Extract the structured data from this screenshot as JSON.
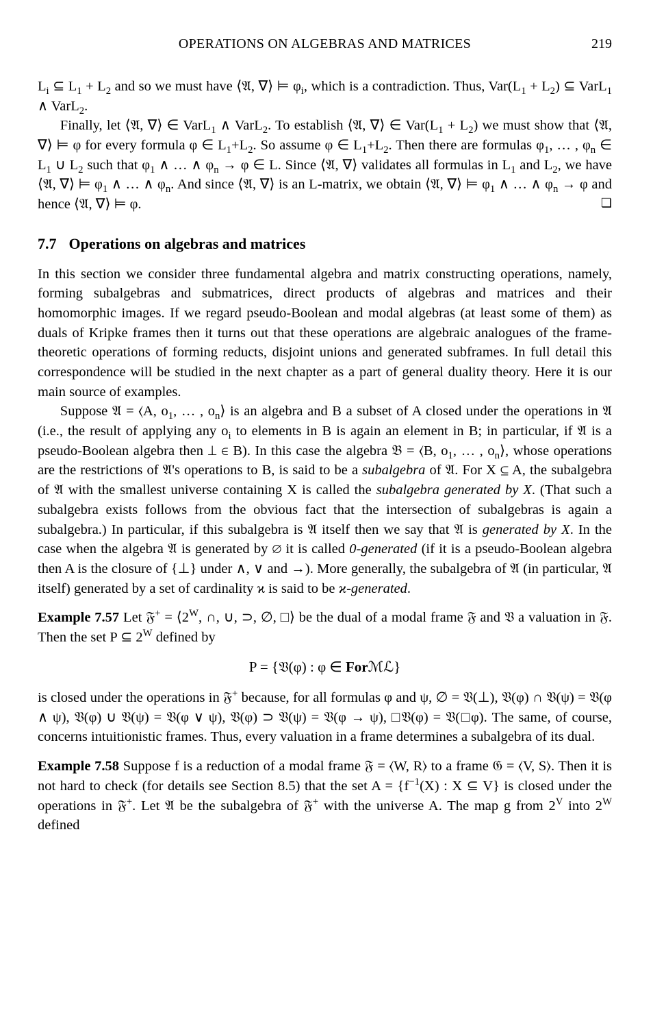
{
  "header": {
    "running_title": "OPERATIONS ON ALGEBRAS AND MATRICES",
    "page_number": "219"
  },
  "para1": "L<sub>i</sub> ⊆ L<sub>1</sub> + L<sub>2</sub> and so we must have ⟨𝔄, ∇⟩ ⊨ φ<sub>i</sub>, which is a contradiction. Thus, Var(L<sub>1</sub> + L<sub>2</sub>) ⊆ VarL<sub>1</sub> ∧ VarL<sub>2</sub>.",
  "para2": "Finally, let ⟨𝔄, ∇⟩ ∈ VarL<sub>1</sub> ∧ VarL<sub>2</sub>. To establish ⟨𝔄, ∇⟩ ∈ Var(L<sub>1</sub> + L<sub>2</sub>) we must show that ⟨𝔄, ∇⟩ ⊨ φ for every formula φ ∈ L<sub>1</sub>+L<sub>2</sub>. So assume φ ∈ L<sub>1</sub>+L<sub>2</sub>. Then there are formulas φ<sub>1</sub>, … , φ<sub>n</sub> ∈ L<sub>1</sub> ∪ L<sub>2</sub> such that φ<sub>1</sub> ∧ … ∧ φ<sub>n</sub> → φ ∈ L. Since ⟨𝔄, ∇⟩ validates all formulas in L<sub>1</sub> and L<sub>2</sub>, we have ⟨𝔄, ∇⟩ ⊨ φ<sub>1</sub> ∧ … ∧ φ<sub>n</sub>. And since ⟨𝔄, ∇⟩ is an L-matrix, we obtain ⟨𝔄, ∇⟩ ⊨ φ<sub>1</sub> ∧ … ∧ φ<sub>n</sub> → φ and hence ⟨𝔄, ∇⟩ ⊨ φ.",
  "qed": "❏",
  "section": {
    "number": "7.7",
    "title": "Operations on algebras and matrices"
  },
  "para3": "In this section we consider three fundamental algebra and matrix constructing operations, namely, forming subalgebras and submatrices, direct products of algebras and matrices and their homomorphic images. If we regard pseudo-Boolean and modal algebras (at least some of them) as duals of Kripke frames then it turns out that these operations are algebraic analogues of the frame-theoretic operations of forming reducts, disjoint unions and generated subframes. In full detail this correspondence will be studied in the next chapter as a part of general duality theory. Here it is our main source of examples.",
  "para4": "Suppose 𝔄 = ⟨A, o<sub>1</sub>, … , o<sub>n</sub>⟩ is an algebra and B a subset of A closed under the operations in 𝔄 (i.e., the result of applying any o<sub>i</sub> to elements in B is again an element in B; in particular, if 𝔄 is a pseudo-Boolean algebra then ⊥ ∈ B). In this case the algebra 𝔅 = ⟨B, o<sub>1</sub>, … , o<sub>n</sub>⟩, whose operations are the restrictions of 𝔄's operations to B, is said to be a <span class=\"it\">subalgebra</span> of 𝔄. For X ⊆ A, the subalgebra of 𝔄 with the smallest universe containing X is called the <span class=\"it\">subalgebra generated by X</span>. (That such a subalgebra exists follows from the obvious fact that the intersection of subalgebras is again a subalgebra.) In particular, if this subalgebra is 𝔄 itself then we say that 𝔄 is <span class=\"it\">generated by X</span>. In the case when the algebra 𝔄 is generated by ∅ it is called <span class=\"it\">0-generated</span> (if it is a pseudo-Boolean algebra then A is the closure of {⊥} under ∧, ∨ and →). More generally, the subalgebra of 𝔄 (in particular, 𝔄 itself) generated by a set of cardinality ϰ is said to be <span class=\"it\">ϰ-generated</span>.",
  "example57_label": "Example 7.57",
  "example57_body": " Let 𝔉<sup>+</sup> = ⟨2<sup>W</sup>, ∩, ∪, ⊃, ∅, □⟩ be the dual of a modal frame 𝔉 and 𝔙 a valuation in 𝔉. Then the set P ⊆ 2<sup>W</sup> defined by",
  "display": "P = {𝔙(φ) :  φ ∈ <span class=\"bf\">For</span>ℳℒ}",
  "para5": "is closed under the operations in 𝔉<sup>+</sup> because, for all formulas φ and ψ, ∅ = 𝔙(⊥), 𝔙(φ) ∩ 𝔙(ψ) = 𝔙(φ ∧ ψ), 𝔙(φ) ∪ 𝔙(ψ) = 𝔙(φ ∨ ψ), 𝔙(φ) ⊃ 𝔙(ψ) = 𝔙(φ → ψ), □𝔙(φ) = 𝔙(□φ). The same, of course, concerns intuitionistic frames. Thus, every valuation in a frame determines a subalgebra of its dual.",
  "example58_label": "Example 7.58",
  "example58_body": " Suppose f is a reduction of a modal frame 𝔉 = ⟨W, R⟩ to a frame 𝔊 = ⟨V, S⟩. Then it is not hard to check (for details see Section 8.5) that the set A = {f<sup>−1</sup>(X) :  X ⊆ V} is closed under the operations in 𝔉<sup>+</sup>. Let 𝔄 be the subalgebra of 𝔉<sup>+</sup> with the universe A. The map g from 2<sup>V</sup> into 2<sup>W</sup> defined"
}
